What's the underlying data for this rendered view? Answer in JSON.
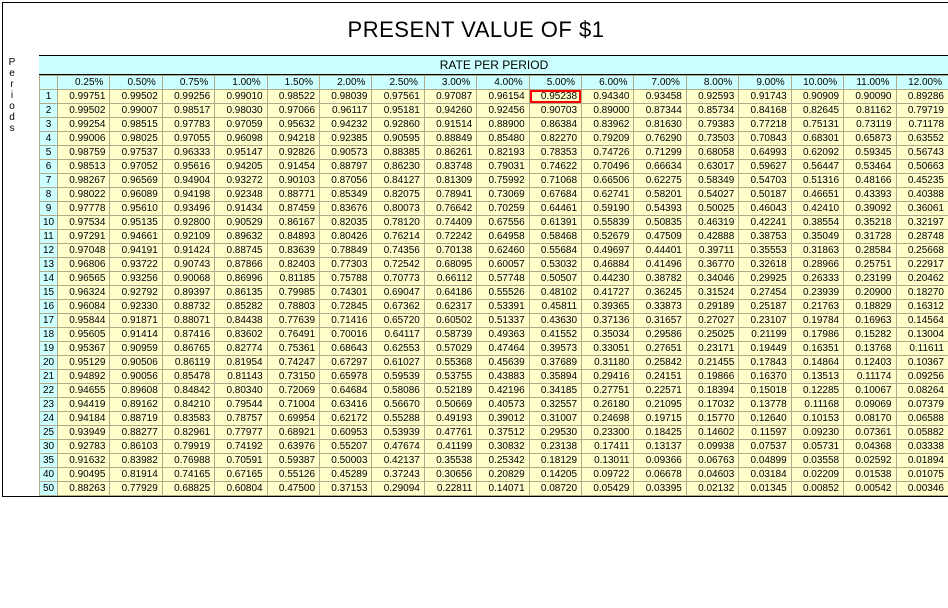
{
  "title": "PRESENT VALUE OF $1",
  "rate_header_label": "RATE PER PERIOD",
  "periods_vertical_label": [
    "P",
    "e",
    "r",
    "i",
    "o",
    "d",
    "s"
  ],
  "rate_headers": [
    "0.25%",
    "0.50%",
    "0.75%",
    "1.00%",
    "1.50%",
    "2.00%",
    "2.50%",
    "3.00%",
    "4.00%",
    "5.00%",
    "6.00%",
    "7.00%",
    "8.00%",
    "9.00%",
    "10.00%",
    "11.00%",
    "12.00%"
  ],
  "periods": [
    1,
    2,
    3,
    4,
    5,
    6,
    7,
    8,
    9,
    10,
    11,
    12,
    13,
    14,
    15,
    16,
    17,
    18,
    19,
    20,
    21,
    22,
    23,
    24,
    25,
    30,
    35,
    40,
    50
  ],
  "highlight": {
    "row": 0,
    "col": 9
  },
  "rows": [
    [
      "0.99751",
      "0.99502",
      "0.99256",
      "0.99010",
      "0.98522",
      "0.98039",
      "0.97561",
      "0.97087",
      "0.96154",
      "0.95238",
      "0.94340",
      "0.93458",
      "0.92593",
      "0.91743",
      "0.90909",
      "0.90090",
      "0.89286"
    ],
    [
      "0.99502",
      "0.99007",
      "0.98517",
      "0.98030",
      "0.97066",
      "0.96117",
      "0.95181",
      "0.94260",
      "0.92456",
      "0.90703",
      "0.89000",
      "0.87344",
      "0.85734",
      "0.84168",
      "0.82645",
      "0.81162",
      "0.79719"
    ],
    [
      "0.99254",
      "0.98515",
      "0.97783",
      "0.97059",
      "0.95632",
      "0.94232",
      "0.92860",
      "0.91514",
      "0.88900",
      "0.86384",
      "0.83962",
      "0.81630",
      "0.79383",
      "0.77218",
      "0.75131",
      "0.73119",
      "0.71178"
    ],
    [
      "0.99006",
      "0.98025",
      "0.97055",
      "0.96098",
      "0.94218",
      "0.92385",
      "0.90595",
      "0.88849",
      "0.85480",
      "0.82270",
      "0.79209",
      "0.76290",
      "0.73503",
      "0.70843",
      "0.68301",
      "0.65873",
      "0.63552"
    ],
    [
      "0.98759",
      "0.97537",
      "0.96333",
      "0.95147",
      "0.92826",
      "0.90573",
      "0.88385",
      "0.86261",
      "0.82193",
      "0.78353",
      "0.74726",
      "0.71299",
      "0.68058",
      "0.64993",
      "0.62092",
      "0.59345",
      "0.56743"
    ],
    [
      "0.98513",
      "0.97052",
      "0.95616",
      "0.94205",
      "0.91454",
      "0.88797",
      "0.86230",
      "0.83748",
      "0.79031",
      "0.74622",
      "0.70496",
      "0.66634",
      "0.63017",
      "0.59627",
      "0.56447",
      "0.53464",
      "0.50663"
    ],
    [
      "0.98267",
      "0.96569",
      "0.94904",
      "0.93272",
      "0.90103",
      "0.87056",
      "0.84127",
      "0.81309",
      "0.75992",
      "0.71068",
      "0.66506",
      "0.62275",
      "0.58349",
      "0.54703",
      "0.51316",
      "0.48166",
      "0.45235"
    ],
    [
      "0.98022",
      "0.96089",
      "0.94198",
      "0.92348",
      "0.88771",
      "0.85349",
      "0.82075",
      "0.78941",
      "0.73069",
      "0.67684",
      "0.62741",
      "0.58201",
      "0.54027",
      "0.50187",
      "0.46651",
      "0.43393",
      "0.40388"
    ],
    [
      "0.97778",
      "0.95610",
      "0.93496",
      "0.91434",
      "0.87459",
      "0.83676",
      "0.80073",
      "0.76642",
      "0.70259",
      "0.64461",
      "0.59190",
      "0.54393",
      "0.50025",
      "0.46043",
      "0.42410",
      "0.39092",
      "0.36061"
    ],
    [
      "0.97534",
      "0.95135",
      "0.92800",
      "0.90529",
      "0.86167",
      "0.82035",
      "0.78120",
      "0.74409",
      "0.67556",
      "0.61391",
      "0.55839",
      "0.50835",
      "0.46319",
      "0.42241",
      "0.38554",
      "0.35218",
      "0.32197"
    ],
    [
      "0.97291",
      "0.94661",
      "0.92109",
      "0.89632",
      "0.84893",
      "0.80426",
      "0.76214",
      "0.72242",
      "0.64958",
      "0.58468",
      "0.52679",
      "0.47509",
      "0.42888",
      "0.38753",
      "0.35049",
      "0.31728",
      "0.28748"
    ],
    [
      "0.97048",
      "0.94191",
      "0.91424",
      "0.88745",
      "0.83639",
      "0.78849",
      "0.74356",
      "0.70138",
      "0.62460",
      "0.55684",
      "0.49697",
      "0.44401",
      "0.39711",
      "0.35553",
      "0.31863",
      "0.28584",
      "0.25668"
    ],
    [
      "0.96806",
      "0.93722",
      "0.90743",
      "0.87866",
      "0.82403",
      "0.77303",
      "0.72542",
      "0.68095",
      "0.60057",
      "0.53032",
      "0.46884",
      "0.41496",
      "0.36770",
      "0.32618",
      "0.28966",
      "0.25751",
      "0.22917"
    ],
    [
      "0.96565",
      "0.93256",
      "0.90068",
      "0.86996",
      "0.81185",
      "0.75788",
      "0.70773",
      "0.66112",
      "0.57748",
      "0.50507",
      "0.44230",
      "0.38782",
      "0.34046",
      "0.29925",
      "0.26333",
      "0.23199",
      "0.20462"
    ],
    [
      "0.96324",
      "0.92792",
      "0.89397",
      "0.86135",
      "0.79985",
      "0.74301",
      "0.69047",
      "0.64186",
      "0.55526",
      "0.48102",
      "0.41727",
      "0.36245",
      "0.31524",
      "0.27454",
      "0.23939",
      "0.20900",
      "0.18270"
    ],
    [
      "0.96084",
      "0.92330",
      "0.88732",
      "0.85282",
      "0.78803",
      "0.72845",
      "0.67362",
      "0.62317",
      "0.53391",
      "0.45811",
      "0.39365",
      "0.33873",
      "0.29189",
      "0.25187",
      "0.21763",
      "0.18829",
      "0.16312"
    ],
    [
      "0.95844",
      "0.91871",
      "0.88071",
      "0.84438",
      "0.77639",
      "0.71416",
      "0.65720",
      "0.60502",
      "0.51337",
      "0.43630",
      "0.37136",
      "0.31657",
      "0.27027",
      "0.23107",
      "0.19784",
      "0.16963",
      "0.14564"
    ],
    [
      "0.95605",
      "0.91414",
      "0.87416",
      "0.83602",
      "0.76491",
      "0.70016",
      "0.64117",
      "0.58739",
      "0.49363",
      "0.41552",
      "0.35034",
      "0.29586",
      "0.25025",
      "0.21199",
      "0.17986",
      "0.15282",
      "0.13004"
    ],
    [
      "0.95367",
      "0.90959",
      "0.86765",
      "0.82774",
      "0.75361",
      "0.68643",
      "0.62553",
      "0.57029",
      "0.47464",
      "0.39573",
      "0.33051",
      "0.27651",
      "0.23171",
      "0.19449",
      "0.16351",
      "0.13768",
      "0.11611"
    ],
    [
      "0.95129",
      "0.90506",
      "0.86119",
      "0.81954",
      "0.74247",
      "0.67297",
      "0.61027",
      "0.55368",
      "0.45639",
      "0.37689",
      "0.31180",
      "0.25842",
      "0.21455",
      "0.17843",
      "0.14864",
      "0.12403",
      "0.10367"
    ],
    [
      "0.94892",
      "0.90056",
      "0.85478",
      "0.81143",
      "0.73150",
      "0.65978",
      "0.59539",
      "0.53755",
      "0.43883",
      "0.35894",
      "0.29416",
      "0.24151",
      "0.19866",
      "0.16370",
      "0.13513",
      "0.11174",
      "0.09256"
    ],
    [
      "0.94655",
      "0.89608",
      "0.84842",
      "0.80340",
      "0.72069",
      "0.64684",
      "0.58086",
      "0.52189",
      "0.42196",
      "0.34185",
      "0.27751",
      "0.22571",
      "0.18394",
      "0.15018",
      "0.12285",
      "0.10067",
      "0.08264"
    ],
    [
      "0.94419",
      "0.89162",
      "0.84210",
      "0.79544",
      "0.71004",
      "0.63416",
      "0.56670",
      "0.50669",
      "0.40573",
      "0.32557",
      "0.26180",
      "0.21095",
      "0.17032",
      "0.13778",
      "0.11168",
      "0.09069",
      "0.07379"
    ],
    [
      "0.94184",
      "0.88719",
      "0.83583",
      "0.78757",
      "0.69954",
      "0.62172",
      "0.55288",
      "0.49193",
      "0.39012",
      "0.31007",
      "0.24698",
      "0.19715",
      "0.15770",
      "0.12640",
      "0.10153",
      "0.08170",
      "0.06588"
    ],
    [
      "0.93949",
      "0.88277",
      "0.82961",
      "0.77977",
      "0.68921",
      "0.60953",
      "0.53939",
      "0.47761",
      "0.37512",
      "0.29530",
      "0.23300",
      "0.18425",
      "0.14602",
      "0.11597",
      "0.09230",
      "0.07361",
      "0.05882"
    ],
    [
      "0.92783",
      "0.86103",
      "0.79919",
      "0.74192",
      "0.63976",
      "0.55207",
      "0.47674",
      "0.41199",
      "0.30832",
      "0.23138",
      "0.17411",
      "0.13137",
      "0.09938",
      "0.07537",
      "0.05731",
      "0.04368",
      "0.03338"
    ],
    [
      "0.91632",
      "0.83982",
      "0.76988",
      "0.70591",
      "0.59387",
      "0.50003",
      "0.42137",
      "0.35538",
      "0.25342",
      "0.18129",
      "0.13011",
      "0.09366",
      "0.06763",
      "0.04899",
      "0.03558",
      "0.02592",
      "0.01894"
    ],
    [
      "0.90495",
      "0.81914",
      "0.74165",
      "0.67165",
      "0.55126",
      "0.45289",
      "0.37243",
      "0.30656",
      "0.20829",
      "0.14205",
      "0.09722",
      "0.06678",
      "0.04603",
      "0.03184",
      "0.02209",
      "0.01538",
      "0.01075"
    ],
    [
      "0.88263",
      "0.77929",
      "0.68825",
      "0.60804",
      "0.47500",
      "0.37153",
      "0.29094",
      "0.22811",
      "0.14071",
      "0.08720",
      "0.05429",
      "0.03395",
      "0.02132",
      "0.01345",
      "0.00852",
      "0.00542",
      "0.00346"
    ]
  ],
  "styling": {
    "header_bg": "#ccffff",
    "cell_bg": "#ffffcc",
    "border_color": "#b0aa8a",
    "highlight_border": "#ff0000",
    "title_fontsize": 22,
    "cell_fontsize": 10,
    "header_fontsize": 12
  }
}
